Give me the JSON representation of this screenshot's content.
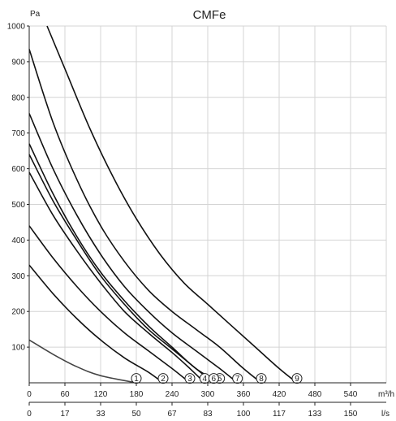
{
  "chart_data": {
    "type": "line",
    "title": "CMFe",
    "ylabel": "Pa",
    "x_unit_top": "m³/h",
    "x_unit_bottom": "l/s",
    "xlim": [
      0,
      600
    ],
    "ylim": [
      0,
      1000
    ],
    "x_ticks_m3h": [
      "0",
      "60",
      "120",
      "180",
      "240",
      "300",
      "360",
      "420",
      "480",
      "540"
    ],
    "x_ticks_ls": [
      "0",
      "17",
      "33",
      "50",
      "67",
      "83",
      "100",
      "117",
      "133",
      "150"
    ],
    "y_ticks": [
      "100",
      "200",
      "300",
      "400",
      "500",
      "600",
      "700",
      "800",
      "900",
      "1000"
    ],
    "grid": true,
    "line_color": "#111111",
    "series": [
      {
        "marker": "1",
        "points": [
          [
            0,
            120
          ],
          [
            40,
            80
          ],
          [
            80,
            45
          ],
          [
            120,
            20
          ],
          [
            180,
            0
          ]
        ]
      },
      {
        "marker": "2",
        "points": [
          [
            0,
            330
          ],
          [
            40,
            250
          ],
          [
            80,
            180
          ],
          [
            120,
            120
          ],
          [
            160,
            70
          ],
          [
            200,
            30
          ],
          [
            225,
            0
          ]
        ]
      },
      {
        "marker": "3",
        "points": [
          [
            0,
            440
          ],
          [
            40,
            350
          ],
          [
            80,
            270
          ],
          [
            120,
            200
          ],
          [
            160,
            140
          ],
          [
            200,
            90
          ],
          [
            240,
            40
          ],
          [
            270,
            0
          ]
        ]
      },
      {
        "marker": "4",
        "points": [
          [
            0,
            590
          ],
          [
            40,
            470
          ],
          [
            80,
            370
          ],
          [
            120,
            280
          ],
          [
            160,
            200
          ],
          [
            200,
            140
          ],
          [
            240,
            85
          ],
          [
            270,
            40
          ],
          [
            295,
            0
          ]
        ]
      },
      {
        "marker": "5",
        "points": [
          [
            0,
            670
          ],
          [
            40,
            530
          ],
          [
            80,
            410
          ],
          [
            120,
            310
          ],
          [
            160,
            230
          ],
          [
            200,
            160
          ],
          [
            240,
            100
          ],
          [
            280,
            40
          ],
          [
            320,
            0
          ]
        ]
      },
      {
        "marker": "6",
        "points": [
          [
            0,
            640
          ],
          [
            40,
            510
          ],
          [
            80,
            400
          ],
          [
            120,
            300
          ],
          [
            160,
            220
          ],
          [
            200,
            150
          ],
          [
            240,
            95
          ],
          [
            280,
            40
          ],
          [
            310,
            0
          ]
        ]
      },
      {
        "marker": "7",
        "points": [
          [
            0,
            755
          ],
          [
            40,
            600
          ],
          [
            80,
            470
          ],
          [
            120,
            360
          ],
          [
            160,
            270
          ],
          [
            200,
            200
          ],
          [
            240,
            140
          ],
          [
            280,
            90
          ],
          [
            320,
            40
          ],
          [
            350,
            0
          ]
        ]
      },
      {
        "marker": "8",
        "points": [
          [
            0,
            935
          ],
          [
            40,
            730
          ],
          [
            80,
            570
          ],
          [
            120,
            440
          ],
          [
            160,
            340
          ],
          [
            200,
            260
          ],
          [
            240,
            200
          ],
          [
            280,
            150
          ],
          [
            320,
            100
          ],
          [
            360,
            40
          ],
          [
            390,
            0
          ]
        ]
      },
      {
        "marker": "9",
        "points": [
          [
            30,
            1000
          ],
          [
            60,
            880
          ],
          [
            100,
            720
          ],
          [
            140,
            580
          ],
          [
            180,
            460
          ],
          [
            220,
            360
          ],
          [
            260,
            280
          ],
          [
            300,
            220
          ],
          [
            340,
            160
          ],
          [
            380,
            100
          ],
          [
            420,
            40
          ],
          [
            450,
            0
          ]
        ]
      }
    ]
  }
}
